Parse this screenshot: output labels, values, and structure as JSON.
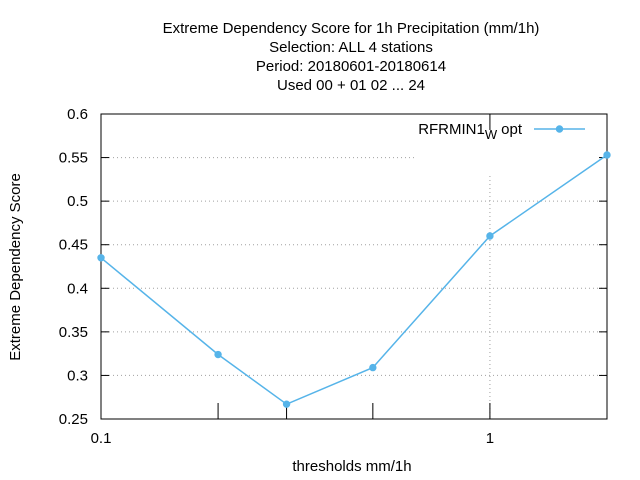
{
  "chart_data": {
    "type": "line",
    "title_lines": [
      "Extreme Dependency Score  for 1h Precipitation (mm/1h)",
      "Selection: ALL      4 stations",
      "Period: 20180601-20180614",
      "Used  00 + 01 02 ... 24"
    ],
    "xlabel": "thresholds mm/1h",
    "ylabel": "Extreme Dependency Score",
    "x_scale": "log",
    "xlim": [
      0.1,
      2
    ],
    "ylim": [
      0.25,
      0.6
    ],
    "x_tick_labels": [
      {
        "value": 0.1,
        "label": "0.1"
      },
      {
        "value": 1,
        "label": "1"
      }
    ],
    "x_minor_ticks": [
      0.2,
      0.3,
      0.5,
      2
    ],
    "y_ticks": [
      {
        "value": 0.25,
        "label": "0.25"
      },
      {
        "value": 0.3,
        "label": "0.3"
      },
      {
        "value": 0.35,
        "label": "0.35"
      },
      {
        "value": 0.4,
        "label": "0.4"
      },
      {
        "value": 0.45,
        "label": "0.45"
      },
      {
        "value": 0.5,
        "label": "0.5"
      },
      {
        "value": 0.55,
        "label": "0.55"
      },
      {
        "value": 0.6,
        "label": "0.6"
      }
    ],
    "grid": true,
    "legend": {
      "placement": "top-right",
      "label_main": "RFRMIN1",
      "label_sub": "W",
      "label_suffix": "opt"
    },
    "series": [
      {
        "name": "RFRMIN1_W opt",
        "color": "#56b4e9",
        "x": [
          0.1,
          0.2,
          0.3,
          0.5,
          1,
          2
        ],
        "y": [
          0.435,
          0.324,
          0.267,
          0.309,
          0.46,
          0.553
        ]
      }
    ]
  }
}
